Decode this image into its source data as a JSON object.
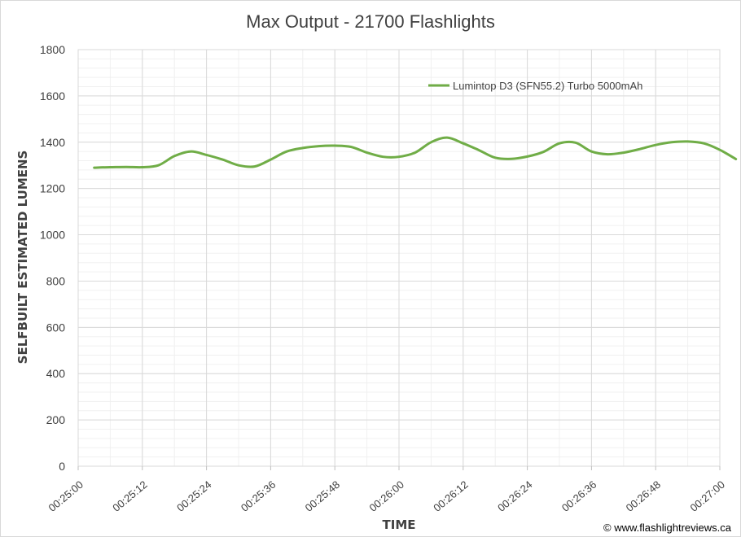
{
  "chart_data": {
    "type": "line",
    "title": "Max Output - 21700 Flashlights",
    "xlabel": "TIME",
    "ylabel": "SELFBUILT ESTIMATED LUMENS",
    "ylim": [
      0,
      1800
    ],
    "yticks": [
      0,
      200,
      400,
      600,
      800,
      1000,
      1200,
      1400,
      1600,
      1800
    ],
    "xlim_seconds": [
      1500,
      1620
    ],
    "xtick_labels": [
      "00:25:00",
      "00:25:12",
      "00:25:24",
      "00:25:36",
      "00:25:48",
      "00:26:00",
      "00:26:12",
      "00:26:24",
      "00:26:36",
      "00:26:48",
      "00:27:00"
    ],
    "grid": true,
    "legend_position": "top-right",
    "series": [
      {
        "name": "Lumintop D3 (SFN55.2) Turbo 5000mAh",
        "color": "#70ad47",
        "x": [
          "00:25:03",
          "00:25:06",
          "00:25:09",
          "00:25:12",
          "00:25:15",
          "00:25:18",
          "00:25:21",
          "00:25:24",
          "00:25:27",
          "00:25:30",
          "00:25:33",
          "00:25:36",
          "00:25:39",
          "00:25:42",
          "00:25:45",
          "00:25:48",
          "00:25:51",
          "00:25:54",
          "00:25:57",
          "00:26:00",
          "00:26:03",
          "00:26:06",
          "00:26:09",
          "00:26:12",
          "00:26:15",
          "00:26:18",
          "00:26:21",
          "00:26:24",
          "00:26:27",
          "00:26:30",
          "00:26:33",
          "00:26:36",
          "00:26:39",
          "00:26:42",
          "00:26:45",
          "00:26:48",
          "00:26:51",
          "00:26:54",
          "00:26:57",
          "00:27:00",
          "00:27:03"
        ],
        "values": [
          1290,
          1292,
          1293,
          1292,
          1300,
          1340,
          1360,
          1345,
          1325,
          1300,
          1295,
          1325,
          1360,
          1375,
          1383,
          1385,
          1380,
          1355,
          1337,
          1337,
          1355,
          1400,
          1420,
          1395,
          1365,
          1333,
          1328,
          1338,
          1358,
          1395,
          1398,
          1360,
          1348,
          1355,
          1370,
          1388,
          1400,
          1403,
          1395,
          1367,
          1327
        ]
      }
    ]
  },
  "credit": "© www.flashlightreviews.ca"
}
